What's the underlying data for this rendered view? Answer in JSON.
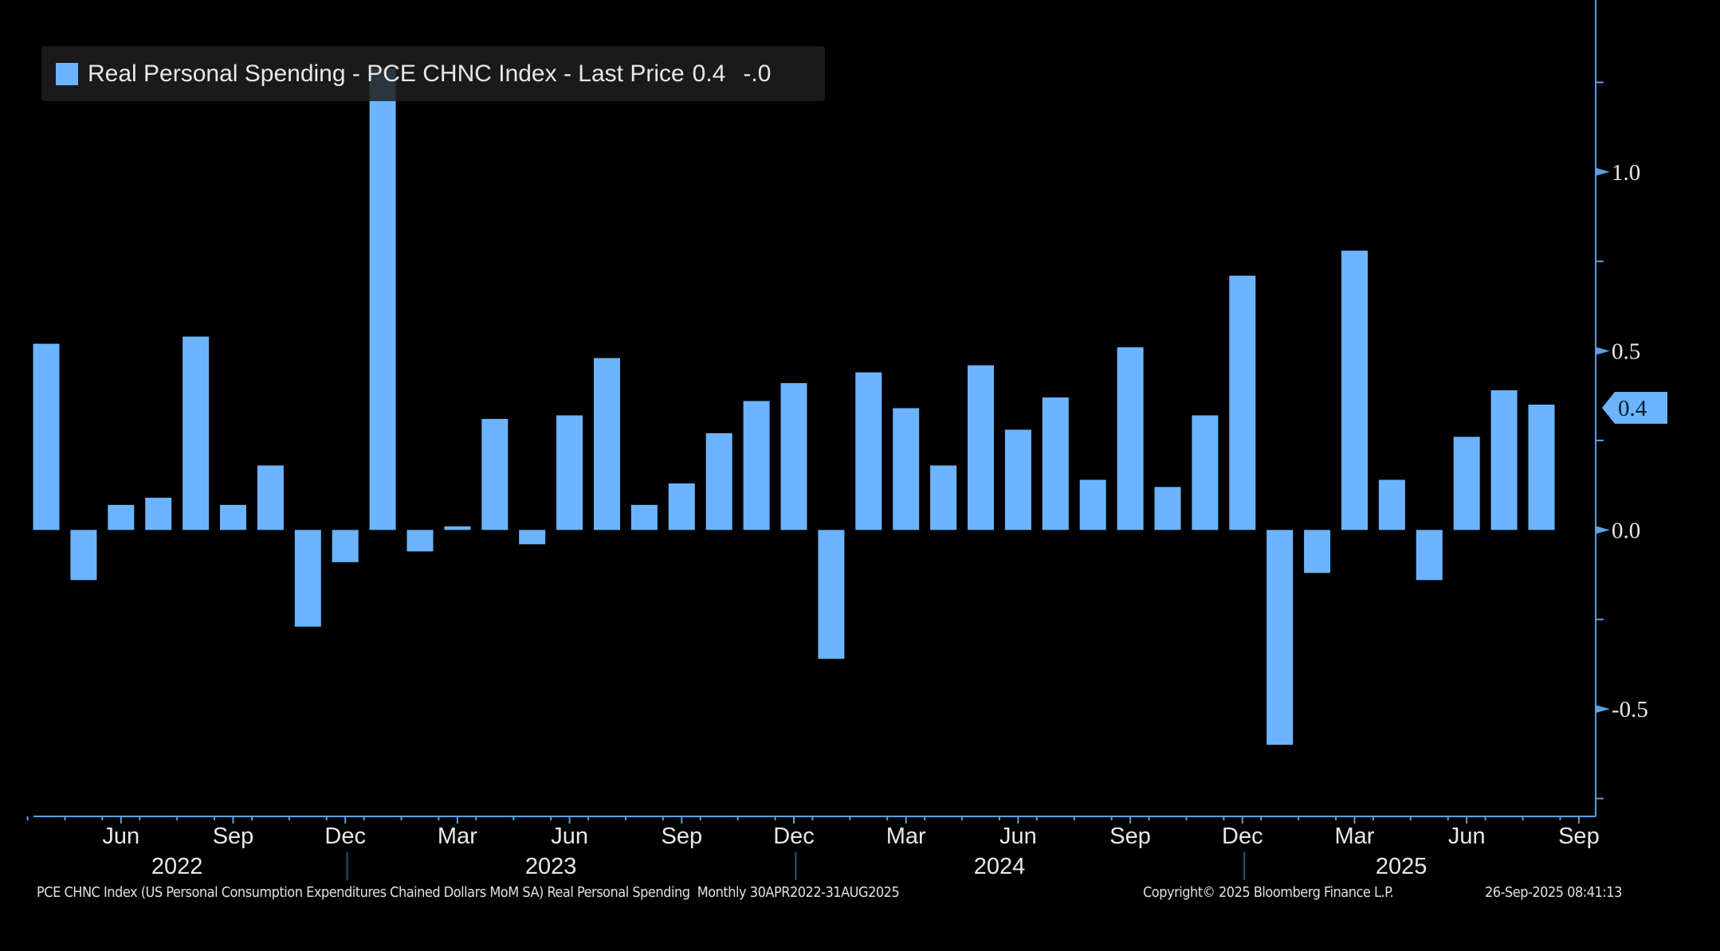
{
  "chart_data": {
    "type": "bar",
    "title": "",
    "legend": {
      "label": "Real Personal Spending - PCE CHNC Index - Last Price",
      "last_price": "0.4",
      "change": "-.0",
      "placement": "top-left"
    },
    "categories": [
      "Apr 2022",
      "May 2022",
      "Jun 2022",
      "Jul 2022",
      "Aug 2022",
      "Sep 2022",
      "Oct 2022",
      "Nov 2022",
      "Dec 2022",
      "Jan 2023",
      "Feb 2023",
      "Mar 2023",
      "Apr 2023",
      "May 2023",
      "Jun 2023",
      "Jul 2023",
      "Aug 2023",
      "Sep 2023",
      "Oct 2023",
      "Nov 2023",
      "Dec 2023",
      "Jan 2024",
      "Feb 2024",
      "Mar 2024",
      "Apr 2024",
      "May 2024",
      "Jun 2024",
      "Jul 2024",
      "Aug 2024",
      "Sep 2024",
      "Oct 2024",
      "Nov 2024",
      "Dec 2024",
      "Jan 2025",
      "Feb 2025",
      "Mar 2025",
      "Apr 2025",
      "May 2025",
      "Jun 2025",
      "Jul 2025",
      "Aug 2025"
    ],
    "values": [
      0.52,
      -0.14,
      0.07,
      0.09,
      0.54,
      0.07,
      0.18,
      -0.27,
      -0.09,
      1.29,
      -0.06,
      0.01,
      0.31,
      -0.04,
      0.32,
      0.48,
      0.07,
      0.13,
      0.27,
      0.36,
      0.41,
      -0.36,
      0.44,
      0.34,
      0.18,
      0.46,
      0.28,
      0.37,
      0.14,
      0.51,
      0.12,
      0.32,
      0.71,
      -0.6,
      -0.12,
      0.78,
      0.14,
      -0.14,
      0.26,
      0.39,
      0.35
    ],
    "ylim": [
      -0.8,
      1.48
    ],
    "yticks": [
      {
        "value": -0.5,
        "label": "-0.5"
      },
      {
        "value": 0.0,
        "label": "0.0"
      },
      {
        "value": 0.5,
        "label": "0.5"
      },
      {
        "value": 1.0,
        "label": "1.0"
      }
    ],
    "y_minor_ticks": [
      -0.75,
      -0.25,
      0.25,
      0.75,
      1.25
    ],
    "y_axis_position": "right",
    "last_value_marker": {
      "value": 0.35,
      "label": "0.4"
    },
    "x_month_labels": [
      {
        "index": 2,
        "label": "Jun"
      },
      {
        "index": 5,
        "label": "Sep"
      },
      {
        "index": 8,
        "label": "Dec"
      },
      {
        "index": 11,
        "label": "Mar"
      },
      {
        "index": 14,
        "label": "Jun"
      },
      {
        "index": 17,
        "label": "Sep"
      },
      {
        "index": 20,
        "label": "Dec"
      },
      {
        "index": 23,
        "label": "Mar"
      },
      {
        "index": 26,
        "label": "Jun"
      },
      {
        "index": 29,
        "label": "Sep"
      },
      {
        "index": 32,
        "label": "Dec"
      },
      {
        "index": 35,
        "label": "Mar"
      },
      {
        "index": 38,
        "label": "Jun"
      },
      {
        "index": 41,
        "label": "Sep"
      }
    ],
    "x_year_labels": [
      {
        "center": 3.5,
        "label": "2022"
      },
      {
        "center": 13.5,
        "label": "2023"
      },
      {
        "center": 25.5,
        "label": "2024"
      },
      {
        "center": 36.25,
        "label": "2025"
      }
    ],
    "year_separators": [
      8.05,
      20.05,
      32.05
    ],
    "grid": false,
    "xlabel": "",
    "ylabel": "",
    "colors": {
      "bar": "#6cb4ff",
      "axis": "#5b9fe3",
      "text": "#e8e8e8",
      "background": "#000000"
    }
  },
  "footer": {
    "description": "PCE CHNC Index (US Personal Consumption Expenditures Chained Dollars MoM SA) Real Personal Spending  Monthly 30APR2022-31AUG2025",
    "copyright": "Copyright© 2025 Bloomberg Finance L.P.",
    "timestamp": "26-Sep-2025 08:41:13"
  }
}
